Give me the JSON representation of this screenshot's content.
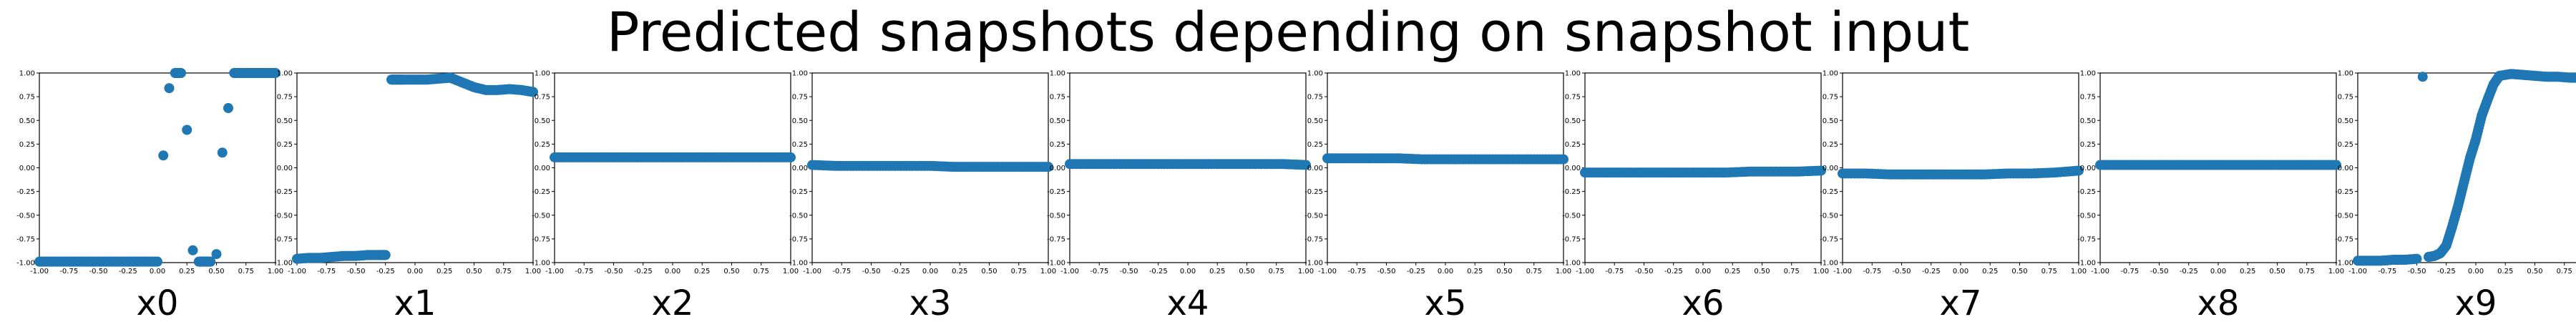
{
  "title": "Predicted snapshots depending on snapshot input",
  "colors": {
    "marker": "#1f77b4",
    "axes": "#000000",
    "background": "#ffffff"
  },
  "chart_data": [
    {
      "type": "scatter",
      "xlabel": "x0",
      "xlim": [
        -1,
        1
      ],
      "ylim": [
        -1,
        1
      ],
      "x": [
        -1.0,
        -0.9,
        -0.8,
        -0.7,
        -0.6,
        -0.5,
        -0.4,
        -0.3,
        -0.2,
        -0.1,
        0.0,
        0.05,
        0.1,
        0.15,
        0.2,
        0.25,
        0.3,
        0.35,
        0.4,
        0.45,
        0.5,
        0.55,
        0.6,
        0.65,
        0.7,
        0.8,
        0.9,
        1.0
      ],
      "y": [
        -0.99,
        -0.99,
        -0.99,
        -0.99,
        -0.99,
        -0.99,
        -0.99,
        -0.99,
        -0.99,
        -0.99,
        -0.99,
        0.13,
        0.84,
        1.0,
        1.0,
        0.4,
        -0.87,
        -0.99,
        -0.99,
        -0.99,
        -0.91,
        0.16,
        0.63,
        1.0,
        1.0,
        1.0,
        1.0,
        1.0
      ]
    },
    {
      "type": "scatter",
      "xlabel": "x1",
      "xlim": [
        -1,
        1
      ],
      "ylim": [
        -1,
        1
      ],
      "x": [
        -1.0,
        -0.9,
        -0.8,
        -0.7,
        -0.6,
        -0.5,
        -0.4,
        -0.3,
        -0.25,
        -0.2,
        -0.15,
        -0.1,
        0.0,
        0.1,
        0.2,
        0.3,
        0.4,
        0.5,
        0.6,
        0.7,
        0.8,
        0.9,
        1.0
      ],
      "y": [
        -0.96,
        -0.95,
        -0.95,
        -0.94,
        -0.93,
        -0.93,
        -0.92,
        -0.92,
        -0.92,
        0.93,
        0.93,
        0.93,
        0.93,
        0.93,
        0.94,
        0.95,
        0.9,
        0.85,
        0.82,
        0.82,
        0.83,
        0.82,
        0.8
      ]
    },
    {
      "type": "scatter",
      "xlabel": "x2",
      "xlim": [
        -1,
        1
      ],
      "ylim": [
        -1,
        1
      ],
      "x": [
        -1.0,
        -0.8,
        -0.6,
        -0.4,
        -0.2,
        0.0,
        0.2,
        0.4,
        0.6,
        0.8,
        1.0
      ],
      "y": [
        0.11,
        0.11,
        0.11,
        0.11,
        0.11,
        0.11,
        0.11,
        0.11,
        0.11,
        0.11,
        0.11
      ]
    },
    {
      "type": "scatter",
      "xlabel": "x3",
      "xlim": [
        -1,
        1
      ],
      "ylim": [
        -1,
        1
      ],
      "x": [
        -1.0,
        -0.8,
        -0.6,
        -0.4,
        -0.2,
        0.0,
        0.2,
        0.4,
        0.6,
        0.8,
        1.0
      ],
      "y": [
        0.03,
        0.02,
        0.02,
        0.02,
        0.02,
        0.02,
        0.01,
        0.01,
        0.01,
        0.01,
        0.01
      ]
    },
    {
      "type": "scatter",
      "xlabel": "x4",
      "xlim": [
        -1,
        1
      ],
      "ylim": [
        -1,
        1
      ],
      "x": [
        -1.0,
        -0.8,
        -0.6,
        -0.4,
        -0.2,
        0.0,
        0.2,
        0.4,
        0.6,
        0.8,
        1.0
      ],
      "y": [
        0.04,
        0.04,
        0.04,
        0.04,
        0.04,
        0.04,
        0.04,
        0.04,
        0.04,
        0.04,
        0.03
      ]
    },
    {
      "type": "scatter",
      "xlabel": "x5",
      "xlim": [
        -1,
        1
      ],
      "ylim": [
        -1,
        1
      ],
      "x": [
        -1.0,
        -0.8,
        -0.6,
        -0.4,
        -0.2,
        0.0,
        0.2,
        0.4,
        0.6,
        0.8,
        1.0
      ],
      "y": [
        0.1,
        0.1,
        0.1,
        0.1,
        0.09,
        0.09,
        0.09,
        0.09,
        0.09,
        0.09,
        0.09
      ]
    },
    {
      "type": "scatter",
      "xlabel": "x6",
      "xlim": [
        -1,
        1
      ],
      "ylim": [
        -1,
        1
      ],
      "x": [
        -1.0,
        -0.8,
        -0.6,
        -0.4,
        -0.2,
        0.0,
        0.2,
        0.4,
        0.6,
        0.8,
        1.0
      ],
      "y": [
        -0.05,
        -0.05,
        -0.05,
        -0.05,
        -0.05,
        -0.05,
        -0.05,
        -0.04,
        -0.04,
        -0.04,
        -0.03
      ]
    },
    {
      "type": "scatter",
      "xlabel": "x7",
      "xlim": [
        -1,
        1
      ],
      "ylim": [
        -1,
        1
      ],
      "x": [
        -1.0,
        -0.8,
        -0.6,
        -0.4,
        -0.2,
        0.0,
        0.2,
        0.4,
        0.6,
        0.8,
        1.0
      ],
      "y": [
        -0.06,
        -0.06,
        -0.07,
        -0.07,
        -0.07,
        -0.07,
        -0.07,
        -0.06,
        -0.06,
        -0.05,
        -0.03
      ]
    },
    {
      "type": "scatter",
      "xlabel": "x8",
      "xlim": [
        -1,
        1
      ],
      "ylim": [
        -1,
        1
      ],
      "x": [
        -1.0,
        -0.8,
        -0.6,
        -0.4,
        -0.2,
        0.0,
        0.2,
        0.4,
        0.6,
        0.8,
        1.0
      ],
      "y": [
        0.03,
        0.03,
        0.03,
        0.03,
        0.03,
        0.03,
        0.03,
        0.03,
        0.03,
        0.03,
        0.03
      ]
    },
    {
      "type": "scatter",
      "xlabel": "x9",
      "xlim": [
        -1,
        1
      ],
      "ylim": [
        -1,
        1
      ],
      "x": [
        -1.0,
        -0.9,
        -0.8,
        -0.7,
        -0.6,
        -0.5,
        -0.45,
        -0.4,
        -0.35,
        -0.3,
        -0.25,
        -0.2,
        -0.15,
        -0.1,
        -0.05,
        0.0,
        0.05,
        0.1,
        0.15,
        0.2,
        0.3,
        0.4,
        0.5,
        0.6,
        0.7,
        0.8,
        0.9,
        1.0
      ],
      "y": [
        -0.98,
        -0.98,
        -0.98,
        -0.97,
        -0.97,
        -0.96,
        0.96,
        -0.94,
        -0.93,
        -0.9,
        -0.82,
        -0.62,
        -0.4,
        -0.15,
        0.1,
        0.3,
        0.55,
        0.72,
        0.88,
        0.97,
        0.99,
        0.98,
        0.97,
        0.96,
        0.96,
        0.95,
        0.95,
        0.94
      ]
    }
  ]
}
